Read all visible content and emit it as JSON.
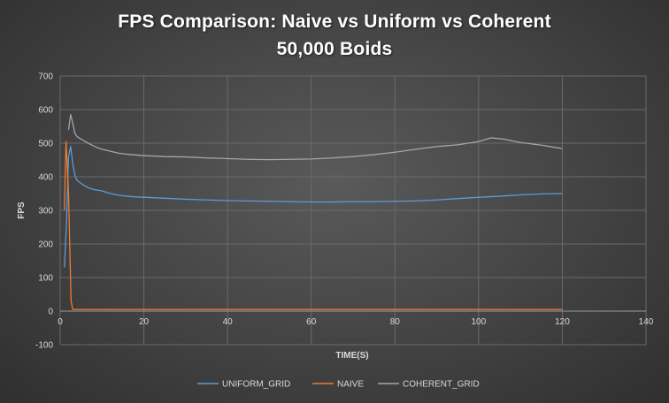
{
  "chart_data": {
    "type": "line",
    "title": "FPS Comparison: Naive vs Uniform vs Coherent",
    "subtitle": "50,000 Boids",
    "xlabel": "TIME(S)",
    "ylabel": "FPS",
    "xlim": [
      0,
      140
    ],
    "ylim": [
      -100,
      700
    ],
    "x_ticks": [
      0,
      20,
      40,
      60,
      80,
      100,
      120,
      140
    ],
    "y_ticks": [
      -100,
      0,
      100,
      200,
      300,
      400,
      500,
      600,
      700
    ],
    "grid": true,
    "legend_position": "bottom",
    "series": [
      {
        "name": "UNIFORM_GRID",
        "color": "#5b9bd5",
        "points": [
          [
            1,
            130
          ],
          [
            1.5,
            260
          ],
          [
            2,
            460
          ],
          [
            2.5,
            490
          ],
          [
            3,
            440
          ],
          [
            3.5,
            405
          ],
          [
            4,
            390
          ],
          [
            5,
            380
          ],
          [
            6,
            372
          ],
          [
            7,
            366
          ],
          [
            8,
            362
          ],
          [
            10,
            358
          ],
          [
            12,
            350
          ],
          [
            14,
            345
          ],
          [
            16,
            342
          ],
          [
            18,
            340
          ],
          [
            20,
            339
          ],
          [
            25,
            336
          ],
          [
            30,
            333
          ],
          [
            35,
            331
          ],
          [
            40,
            329
          ],
          [
            45,
            328
          ],
          [
            50,
            327
          ],
          [
            55,
            326
          ],
          [
            60,
            325
          ],
          [
            65,
            325
          ],
          [
            70,
            326
          ],
          [
            75,
            326
          ],
          [
            80,
            327
          ],
          [
            85,
            328
          ],
          [
            90,
            331
          ],
          [
            95,
            335
          ],
          [
            100,
            339
          ],
          [
            105,
            342
          ],
          [
            110,
            346
          ],
          [
            115,
            349
          ],
          [
            120,
            350
          ]
        ]
      },
      {
        "name": "NAIVE",
        "color": "#ed7d31",
        "points": [
          [
            1,
            300
          ],
          [
            1.4,
            505
          ],
          [
            2,
            350
          ],
          [
            2.6,
            30
          ],
          [
            3,
            5
          ],
          [
            4,
            5
          ],
          [
            10,
            5
          ],
          [
            20,
            5
          ],
          [
            40,
            5
          ],
          [
            60,
            5
          ],
          [
            80,
            5
          ],
          [
            100,
            5
          ],
          [
            120,
            5
          ]
        ]
      },
      {
        "name": "COHERENT_GRID",
        "color": "#a5a5a5",
        "points": [
          [
            2,
            540
          ],
          [
            2.5,
            585
          ],
          [
            3,
            560
          ],
          [
            3.5,
            530
          ],
          [
            4,
            520
          ],
          [
            5,
            512
          ],
          [
            6,
            505
          ],
          [
            7,
            498
          ],
          [
            8,
            492
          ],
          [
            9,
            486
          ],
          [
            10,
            482
          ],
          [
            12,
            476
          ],
          [
            14,
            470
          ],
          [
            16,
            467
          ],
          [
            18,
            465
          ],
          [
            20,
            463
          ],
          [
            25,
            460
          ],
          [
            30,
            459
          ],
          [
            35,
            456
          ],
          [
            40,
            454
          ],
          [
            45,
            452
          ],
          [
            50,
            451
          ],
          [
            55,
            452
          ],
          [
            60,
            453
          ],
          [
            65,
            456
          ],
          [
            70,
            460
          ],
          [
            75,
            466
          ],
          [
            80,
            473
          ],
          [
            85,
            482
          ],
          [
            90,
            490
          ],
          [
            95,
            495
          ],
          [
            100,
            505
          ],
          [
            103,
            516
          ],
          [
            106,
            512
          ],
          [
            110,
            502
          ],
          [
            115,
            494
          ],
          [
            118,
            488
          ],
          [
            120,
            484
          ]
        ]
      }
    ]
  }
}
